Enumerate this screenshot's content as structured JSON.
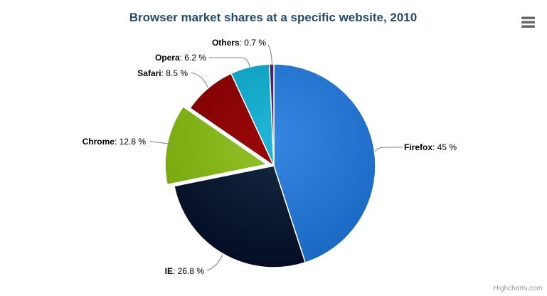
{
  "chart_data": {
    "type": "pie",
    "title": "Browser market shares at a specific website, 2010",
    "unit": "%",
    "start_angle_deg": 0,
    "direction": "clockwise",
    "slices": [
      {
        "name": "Firefox",
        "value": 45,
        "value_text": ": 45 %",
        "color": "#2f7ed8",
        "sliced": false
      },
      {
        "name": "IE",
        "value": 26.8,
        "value_text": ": 26.8 %",
        "color": "#0d233a",
        "sliced": false
      },
      {
        "name": "Chrome",
        "value": 12.8,
        "value_text": ": 12.8 %",
        "color": "#8bbc21",
        "sliced": true
      },
      {
        "name": "Safari",
        "value": 8.5,
        "value_text": ": 8.5 %",
        "color": "#910000",
        "sliced": false
      },
      {
        "name": "Opera",
        "value": 6.2,
        "value_text": ": 6.2 %",
        "color": "#1aadce",
        "sliced": false
      },
      {
        "name": "Others",
        "value": 0.7,
        "value_text": ": 0.7 %",
        "color": "#492970",
        "sliced": false
      }
    ],
    "title_color": "#274b6d",
    "label_color": "#000000",
    "connector_color": "#808080",
    "legend_position": "none",
    "grid": false
  },
  "export_menu": {
    "icon": "hamburger-icon",
    "color": "#666666"
  },
  "credits": {
    "text": "Highcharts.com",
    "color": "#999999"
  }
}
